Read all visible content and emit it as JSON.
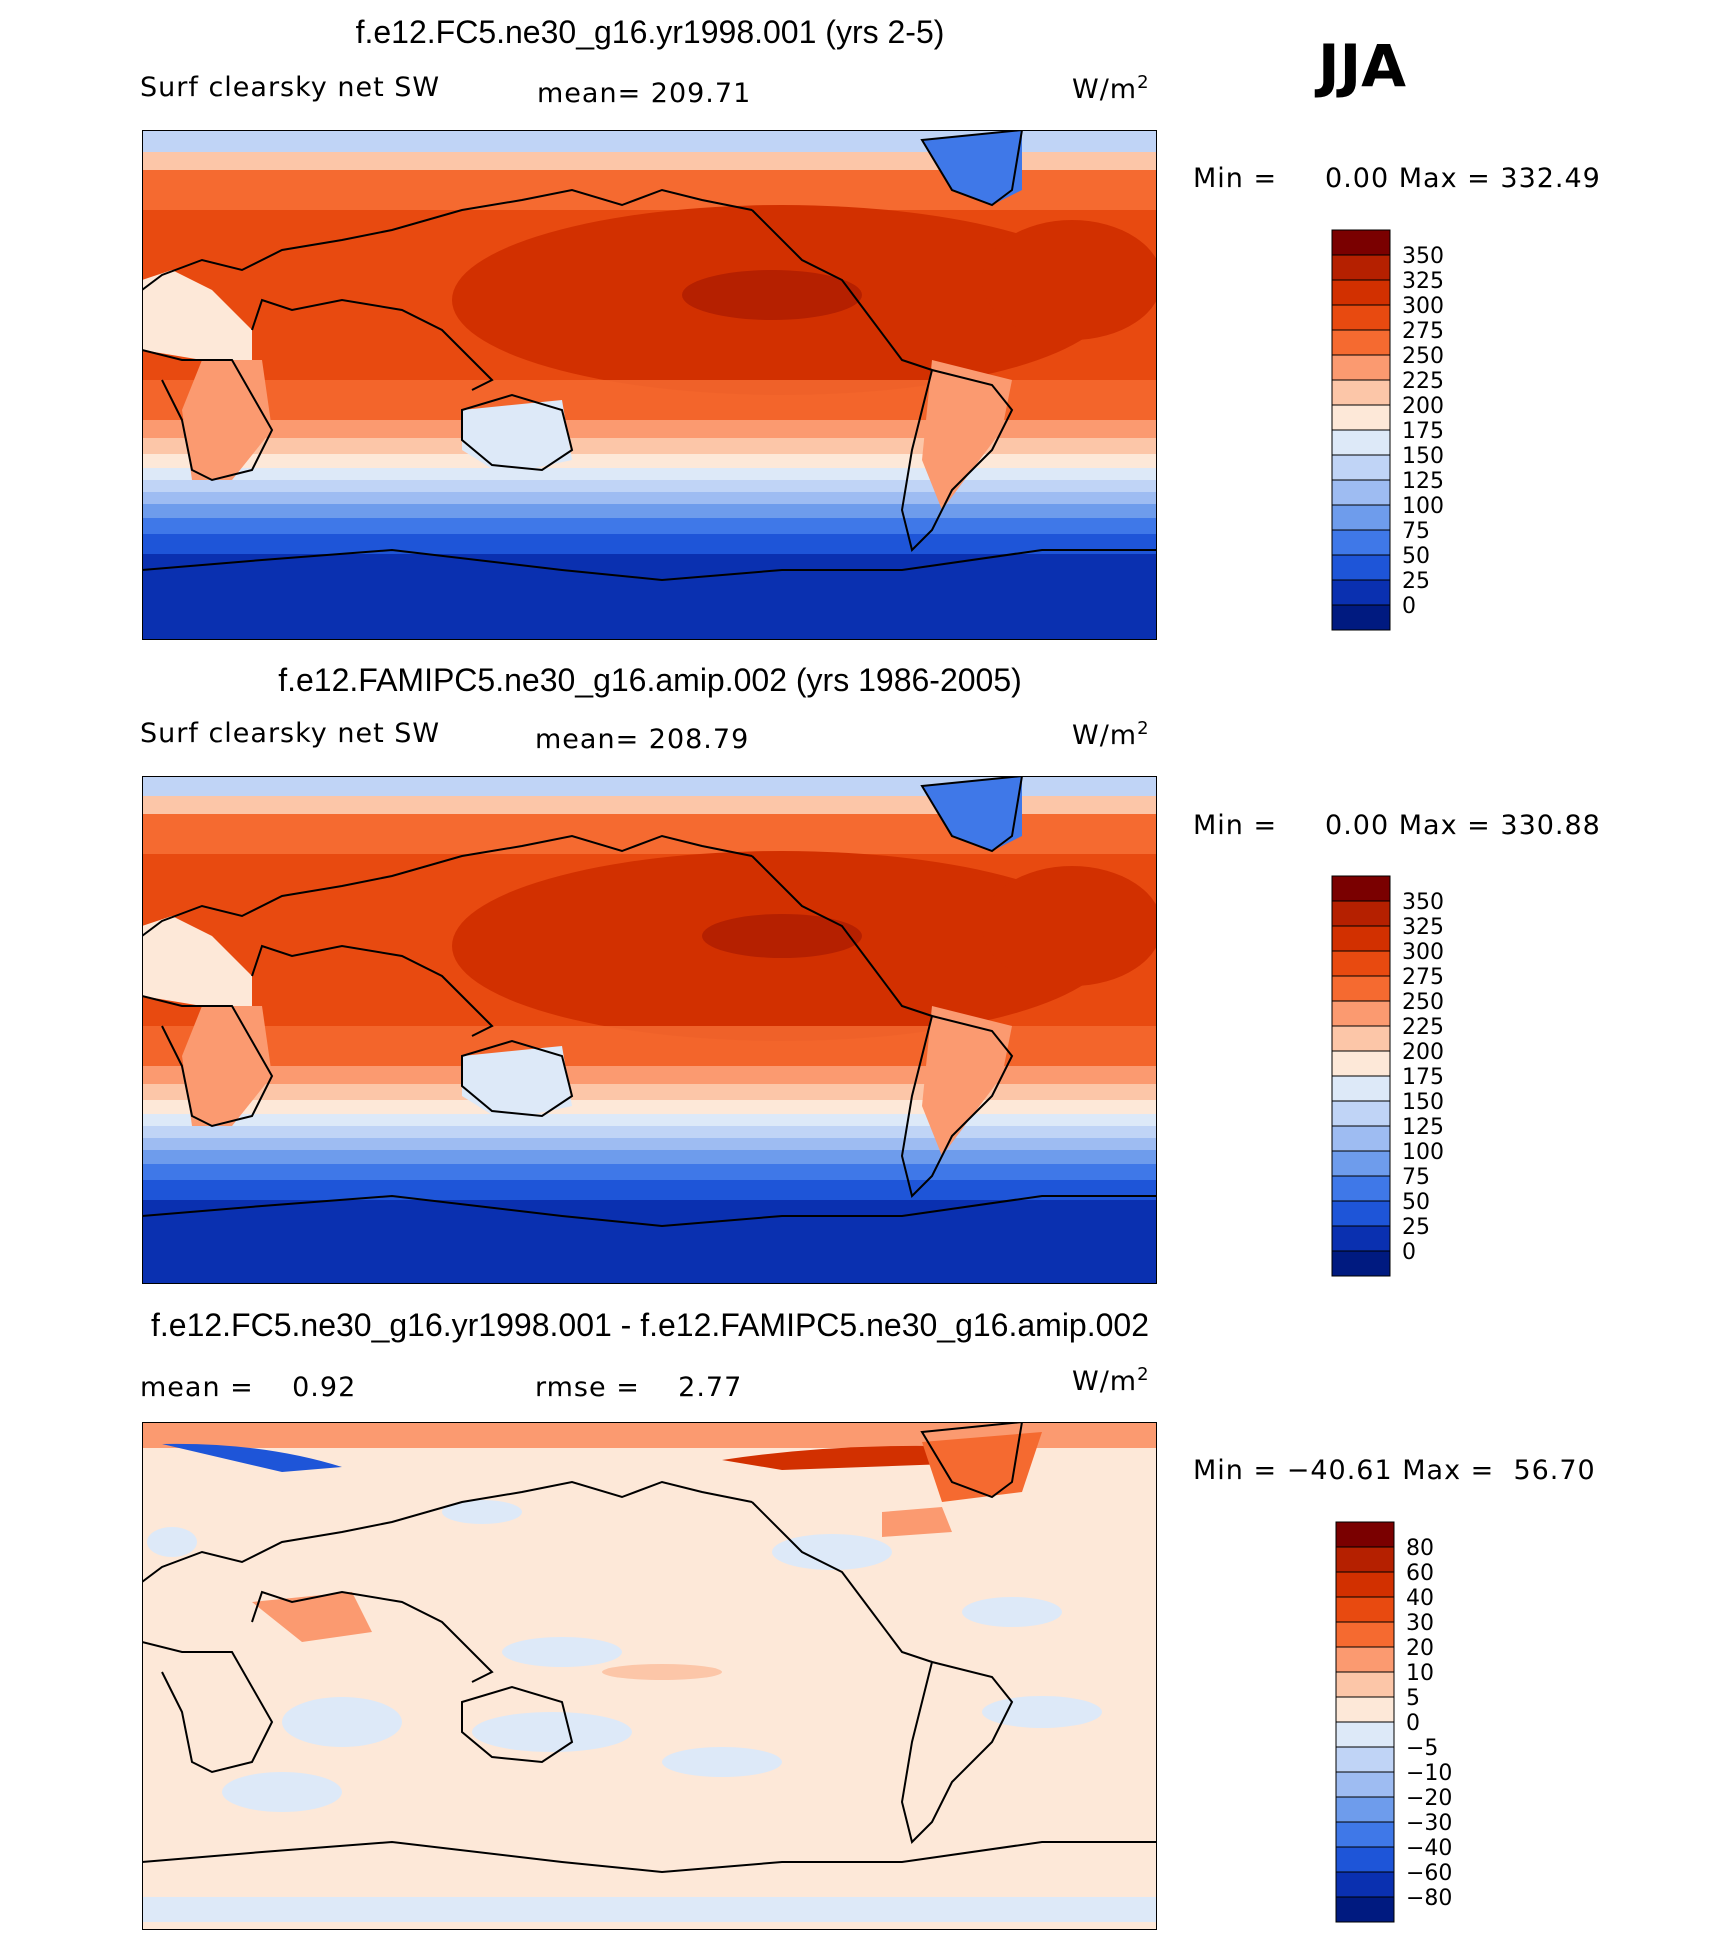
{
  "season": "JJA",
  "units": "W/m",
  "units_exp": "2",
  "panels": [
    {
      "title": "f.e12.FC5.ne30_g16.yr1998.001 (yrs 2-5)",
      "variable": "Surf clearsky net SW",
      "stat1": "mean= 209.71",
      "min_label": "Min =",
      "min_value": "0.00",
      "max_label": "Max =",
      "max_value": "332.49",
      "colorbar_levels": [
        "350",
        "325",
        "300",
        "275",
        "250",
        "225",
        "200",
        "175",
        "150",
        "125",
        "100",
        "75",
        "50",
        "25",
        "0"
      ],
      "colorbar_colors": [
        "#7a0000",
        "#b52000",
        "#d23000",
        "#e84a10",
        "#f56a30",
        "#fb9a70",
        "#fcc6a8",
        "#fde8d8",
        "#dde9f8",
        "#c0d4f6",
        "#9ebcf2",
        "#6e9cec",
        "#3f78e8",
        "#1e55d8",
        "#0a30b0",
        "#001a80"
      ]
    },
    {
      "title": "f.e12.FAMIPC5.ne30_g16.amip.002 (yrs 1986-2005)",
      "variable": "Surf clearsky net SW",
      "stat1": "mean= 208.79",
      "min_label": "Min =",
      "min_value": "0.00",
      "max_label": "Max =",
      "max_value": "330.88",
      "colorbar_levels": [
        "350",
        "325",
        "300",
        "275",
        "250",
        "225",
        "200",
        "175",
        "150",
        "125",
        "100",
        "75",
        "50",
        "25",
        "0"
      ],
      "colorbar_colors": [
        "#7a0000",
        "#b52000",
        "#d23000",
        "#e84a10",
        "#f56a30",
        "#fb9a70",
        "#fcc6a8",
        "#fde8d8",
        "#dde9f8",
        "#c0d4f6",
        "#9ebcf2",
        "#6e9cec",
        "#3f78e8",
        "#1e55d8",
        "#0a30b0",
        "#001a80"
      ]
    },
    {
      "title": "f.e12.FC5.ne30_g16.yr1998.001 - f.e12.FAMIPC5.ne30_g16.amip.002",
      "variable": "mean =",
      "variable_value": "0.92",
      "stat1": "rmse =",
      "stat1_value": "2.77",
      "min_label": "Min =",
      "min_value": "−40.61",
      "max_label": "Max =",
      "max_value": "56.70",
      "colorbar_levels": [
        "80",
        "60",
        "40",
        "30",
        "20",
        "10",
        "5",
        "0",
        "−5",
        "−10",
        "−20",
        "−30",
        "−40",
        "−60",
        "−80"
      ],
      "colorbar_colors": [
        "#7a0000",
        "#b52000",
        "#d23000",
        "#e84a10",
        "#f56a30",
        "#fb9a70",
        "#fcc6a8",
        "#fde8d8",
        "#dde9f8",
        "#c0d4f6",
        "#9ebcf2",
        "#6e9cec",
        "#3f78e8",
        "#1e55d8",
        "#0a30b0",
        "#001a80"
      ]
    }
  ]
}
